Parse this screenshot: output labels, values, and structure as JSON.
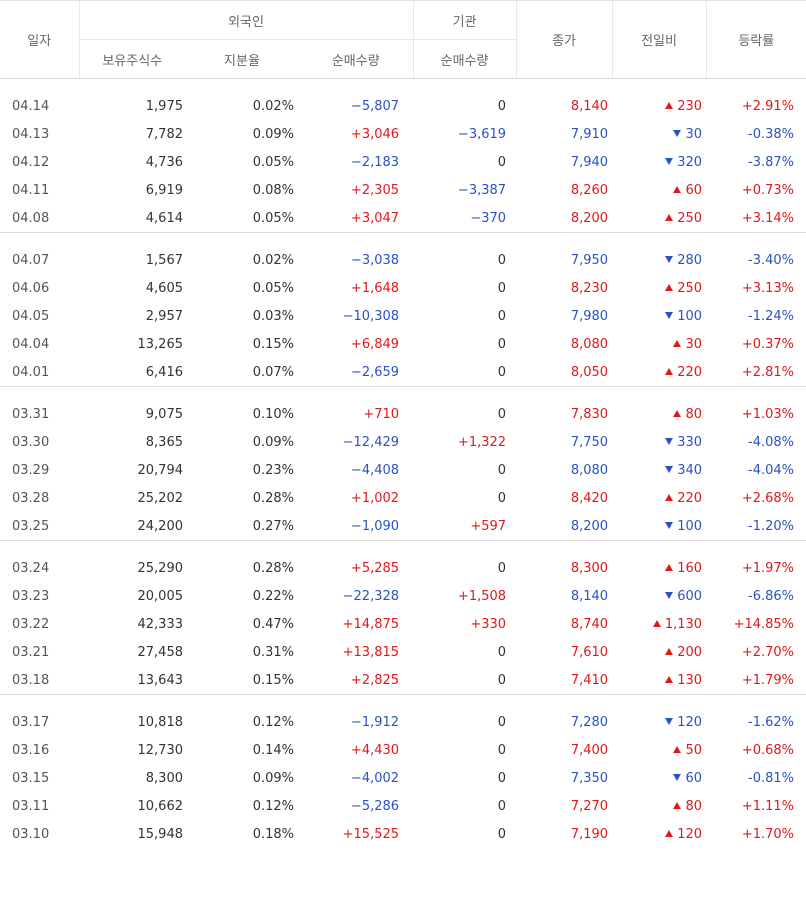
{
  "headers": {
    "date": "일자",
    "foreign_group": "외국인",
    "institution_group": "기관",
    "holdings": "보유주식수",
    "ratio": "지분율",
    "foreign_net": "순매수량",
    "institution_net": "순매수량",
    "close": "종가",
    "change": "전일비",
    "rate": "등락률"
  },
  "colors": {
    "up": "#e2181a",
    "down": "#2a52c4"
  },
  "groups": [
    {
      "rows": [
        {
          "date": "04.14",
          "holdings": "1,975",
          "ratio": "0.02%",
          "foreign_net": "−5,807",
          "institution_net": "0",
          "close": "8,140",
          "dir": "up",
          "change": "230",
          "rate": "+2.91%"
        },
        {
          "date": "04.13",
          "holdings": "7,782",
          "ratio": "0.09%",
          "foreign_net": "+3,046",
          "institution_net": "−3,619",
          "close": "7,910",
          "dir": "down",
          "change": "30",
          "rate": "-0.38%"
        },
        {
          "date": "04.12",
          "holdings": "4,736",
          "ratio": "0.05%",
          "foreign_net": "−2,183",
          "institution_net": "0",
          "close": "7,940",
          "dir": "down",
          "change": "320",
          "rate": "-3.87%"
        },
        {
          "date": "04.11",
          "holdings": "6,919",
          "ratio": "0.08%",
          "foreign_net": "+2,305",
          "institution_net": "−3,387",
          "close": "8,260",
          "dir": "up",
          "change": "60",
          "rate": "+0.73%"
        },
        {
          "date": "04.08",
          "holdings": "4,614",
          "ratio": "0.05%",
          "foreign_net": "+3,047",
          "institution_net": "−370",
          "close": "8,200",
          "dir": "up",
          "change": "250",
          "rate": "+3.14%"
        }
      ]
    },
    {
      "rows": [
        {
          "date": "04.07",
          "holdings": "1,567",
          "ratio": "0.02%",
          "foreign_net": "−3,038",
          "institution_net": "0",
          "close": "7,950",
          "dir": "down",
          "change": "280",
          "rate": "-3.40%"
        },
        {
          "date": "04.06",
          "holdings": "4,605",
          "ratio": "0.05%",
          "foreign_net": "+1,648",
          "institution_net": "0",
          "close": "8,230",
          "dir": "up",
          "change": "250",
          "rate": "+3.13%"
        },
        {
          "date": "04.05",
          "holdings": "2,957",
          "ratio": "0.03%",
          "foreign_net": "−10,308",
          "institution_net": "0",
          "close": "7,980",
          "dir": "down",
          "change": "100",
          "rate": "-1.24%"
        },
        {
          "date": "04.04",
          "holdings": "13,265",
          "ratio": "0.15%",
          "foreign_net": "+6,849",
          "institution_net": "0",
          "close": "8,080",
          "dir": "up",
          "change": "30",
          "rate": "+0.37%"
        },
        {
          "date": "04.01",
          "holdings": "6,416",
          "ratio": "0.07%",
          "foreign_net": "−2,659",
          "institution_net": "0",
          "close": "8,050",
          "dir": "up",
          "change": "220",
          "rate": "+2.81%"
        }
      ]
    },
    {
      "rows": [
        {
          "date": "03.31",
          "holdings": "9,075",
          "ratio": "0.10%",
          "foreign_net": "+710",
          "institution_net": "0",
          "close": "7,830",
          "dir": "up",
          "change": "80",
          "rate": "+1.03%"
        },
        {
          "date": "03.30",
          "holdings": "8,365",
          "ratio": "0.09%",
          "foreign_net": "−12,429",
          "institution_net": "+1,322",
          "close": "7,750",
          "dir": "down",
          "change": "330",
          "rate": "-4.08%"
        },
        {
          "date": "03.29",
          "holdings": "20,794",
          "ratio": "0.23%",
          "foreign_net": "−4,408",
          "institution_net": "0",
          "close": "8,080",
          "dir": "down",
          "change": "340",
          "rate": "-4.04%"
        },
        {
          "date": "03.28",
          "holdings": "25,202",
          "ratio": "0.28%",
          "foreign_net": "+1,002",
          "institution_net": "0",
          "close": "8,420",
          "dir": "up",
          "change": "220",
          "rate": "+2.68%"
        },
        {
          "date": "03.25",
          "holdings": "24,200",
          "ratio": "0.27%",
          "foreign_net": "−1,090",
          "institution_net": "+597",
          "close": "8,200",
          "dir": "down",
          "change": "100",
          "rate": "-1.20%"
        }
      ]
    },
    {
      "rows": [
        {
          "date": "03.24",
          "holdings": "25,290",
          "ratio": "0.28%",
          "foreign_net": "+5,285",
          "institution_net": "0",
          "close": "8,300",
          "dir": "up",
          "change": "160",
          "rate": "+1.97%"
        },
        {
          "date": "03.23",
          "holdings": "20,005",
          "ratio": "0.22%",
          "foreign_net": "−22,328",
          "institution_net": "+1,508",
          "close": "8,140",
          "dir": "down",
          "change": "600",
          "rate": "-6.86%"
        },
        {
          "date": "03.22",
          "holdings": "42,333",
          "ratio": "0.47%",
          "foreign_net": "+14,875",
          "institution_net": "+330",
          "close": "8,740",
          "dir": "up",
          "change": "1,130",
          "rate": "+14.85%"
        },
        {
          "date": "03.21",
          "holdings": "27,458",
          "ratio": "0.31%",
          "foreign_net": "+13,815",
          "institution_net": "0",
          "close": "7,610",
          "dir": "up",
          "change": "200",
          "rate": "+2.70%"
        },
        {
          "date": "03.18",
          "holdings": "13,643",
          "ratio": "0.15%",
          "foreign_net": "+2,825",
          "institution_net": "0",
          "close": "7,410",
          "dir": "up",
          "change": "130",
          "rate": "+1.79%"
        }
      ]
    },
    {
      "rows": [
        {
          "date": "03.17",
          "holdings": "10,818",
          "ratio": "0.12%",
          "foreign_net": "−1,912",
          "institution_net": "0",
          "close": "7,280",
          "dir": "down",
          "change": "120",
          "rate": "-1.62%"
        },
        {
          "date": "03.16",
          "holdings": "12,730",
          "ratio": "0.14%",
          "foreign_net": "+4,430",
          "institution_net": "0",
          "close": "7,400",
          "dir": "up",
          "change": "50",
          "rate": "+0.68%"
        },
        {
          "date": "03.15",
          "holdings": "8,300",
          "ratio": "0.09%",
          "foreign_net": "−4,002",
          "institution_net": "0",
          "close": "7,350",
          "dir": "down",
          "change": "60",
          "rate": "-0.81%"
        },
        {
          "date": "03.11",
          "holdings": "10,662",
          "ratio": "0.12%",
          "foreign_net": "−5,286",
          "institution_net": "0",
          "close": "7,270",
          "dir": "up",
          "change": "80",
          "rate": "+1.11%"
        },
        {
          "date": "03.10",
          "holdings": "15,948",
          "ratio": "0.18%",
          "foreign_net": "+15,525",
          "institution_net": "0",
          "close": "7,190",
          "dir": "up",
          "change": "120",
          "rate": "+1.70%"
        }
      ]
    }
  ]
}
